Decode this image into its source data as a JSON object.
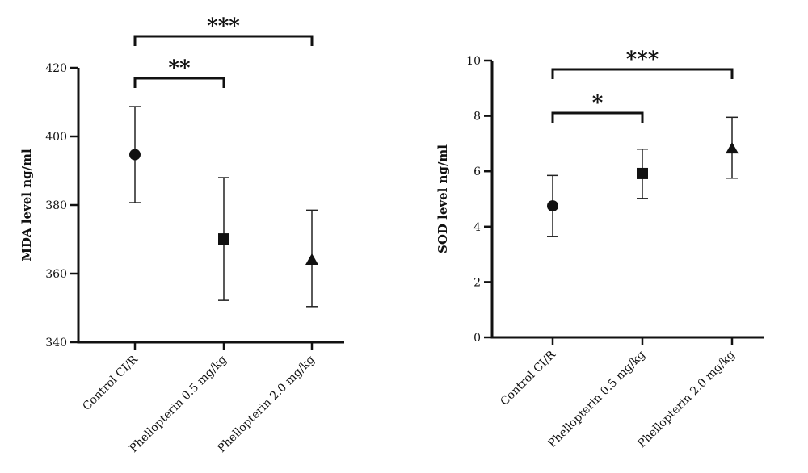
{
  "chart_data": [
    {
      "type": "scatter",
      "ylabel": "MDA level ng/ml",
      "ylim": [
        340,
        420
      ],
      "yticks": [
        "340",
        "360",
        "380",
        "400",
        "420"
      ],
      "categories": [
        "Control CI/R",
        "Phellopterin 0.5 mg/kg",
        "Phellopterin 2.0 mg/kg"
      ],
      "markers": [
        "circle",
        "square",
        "triangle"
      ],
      "values": [
        394.7,
        370.1,
        364.0
      ],
      "err_low": [
        380.7,
        352.2,
        350.4
      ],
      "err_high": [
        408.7,
        388.0,
        378.5
      ],
      "significance": [
        {
          "from": 0,
          "to": 1,
          "label": "**"
        },
        {
          "from": 0,
          "to": 2,
          "label": "***"
        }
      ]
    },
    {
      "type": "scatter",
      "ylabel": "SOD level ng/ml",
      "ylim": [
        0,
        10
      ],
      "yticks": [
        "0",
        "2",
        "4",
        "6",
        "8",
        "10"
      ],
      "categories": [
        "Control CI/R",
        "Phellopterin 0.5 mg/kg",
        "Phellopterin 2.0 mg/kg"
      ],
      "markers": [
        "circle",
        "square",
        "triangle"
      ],
      "values": [
        4.75,
        5.92,
        6.82
      ],
      "err_low": [
        3.65,
        5.02,
        5.75
      ],
      "err_high": [
        5.85,
        6.8,
        7.95
      ],
      "significance": [
        {
          "from": 0,
          "to": 1,
          "label": "*"
        },
        {
          "from": 0,
          "to": 2,
          "label": "***"
        }
      ]
    }
  ]
}
